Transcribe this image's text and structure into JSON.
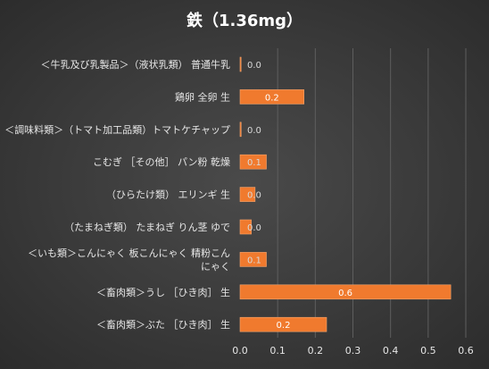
{
  "chart_data": {
    "type": "bar",
    "orientation": "horizontal",
    "title": "鉄（1.36mg）",
    "categories": [
      "＜牛乳及び乳製品＞（液状乳類） 普通牛乳",
      "鶏卵 全卵 生",
      "＜調味料類＞（トマト加工品類）トマトケチャップ",
      "こむぎ ［その他］ パン粉 乾燥",
      "（ひらたけ類） エリンギ 生",
      "（たまねぎ類） たまねぎ りん茎 ゆで",
      "＜いも類＞こんにゃく 板こんにゃく 精粉こんにゃく",
      "＜畜肉類＞うし ［ひき肉］ 生",
      "＜畜肉類＞ぶた ［ひき肉］ 生"
    ],
    "category_lines": [
      [
        "＜牛乳及び乳製品＞（液状乳類） 普通牛乳"
      ],
      [
        "鶏卵 全卵 生"
      ],
      [
        "＜調味料類＞（トマト加工品類）トマトケチャップ"
      ],
      [
        "こむぎ ［その他］ パン粉 乾燥"
      ],
      [
        "（ひらたけ類） エリンギ 生"
      ],
      [
        "（たまねぎ類） たまねぎ りん茎 ゆで"
      ],
      [
        "＜いも類＞こんにゃく 板こんにゃく 精粉こん",
        "にゃく"
      ],
      [
        "＜畜肉類＞うし ［ひき肉］ 生"
      ],
      [
        "＜畜肉類＞ぶた ［ひき肉］ 生"
      ]
    ],
    "values": [
      0.0,
      0.17,
      0.003,
      0.07,
      0.04,
      0.03,
      0.07,
      0.56,
      0.23
    ],
    "data_labels": [
      "0.0",
      "0.2",
      "0.0",
      "0.1",
      "0.0",
      "0.0",
      "0.1",
      "0.6",
      "0.2"
    ],
    "xlim": [
      0,
      0.6
    ],
    "ticks": [
      0,
      0.1,
      0.2,
      0.3,
      0.4,
      0.5,
      0.6
    ],
    "tick_labels": [
      "0.0",
      "0.1",
      "0.2",
      "0.3",
      "0.4",
      "0.5",
      "0.6"
    ],
    "grid": "vertical",
    "legend": "none",
    "colors": {
      "bar": "#f07a2e",
      "bar_border": "#f4a56e",
      "grid": "#5e5e5e",
      "text": "#ffffff",
      "label_text": "#e6e6e6",
      "value_label_on_bar": "#ffffff",
      "value_label_zero": "#d9d9d9"
    }
  }
}
